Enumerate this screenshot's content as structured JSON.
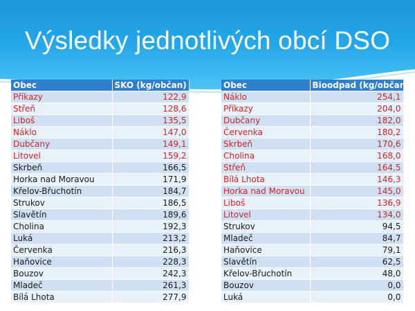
{
  "slide": {
    "title": "Výsledky jednotlivých obcí DSO"
  },
  "colors": {
    "header_blue": "#1a97dc",
    "table_header": "#2f7fcf",
    "row_odd": "#cfe0f3",
    "row_even": "#e8f0fa",
    "highlight_text": "#d42222"
  },
  "left_table": {
    "headers": [
      "Obec",
      "SKO (kg/občan)"
    ],
    "rows": [
      {
        "name": "Příkazy",
        "value": "122,9",
        "highlight": true
      },
      {
        "name": "Střeň",
        "value": "128,6",
        "highlight": true
      },
      {
        "name": "Liboš",
        "value": "135,5",
        "highlight": true
      },
      {
        "name": "Náklo",
        "value": "147,0",
        "highlight": true
      },
      {
        "name": "Dubčany",
        "value": "149,1",
        "highlight": true
      },
      {
        "name": "Litovel",
        "value": "159,2",
        "highlight": true
      },
      {
        "name": "Skrbeň",
        "value": "166,5",
        "highlight": false
      },
      {
        "name": "Horka nad Moravou",
        "value": "171,9",
        "highlight": false
      },
      {
        "name": "Křelov-Břuchotín",
        "value": "184,7",
        "highlight": false
      },
      {
        "name": "Strukov",
        "value": "186,5",
        "highlight": false
      },
      {
        "name": "Slavětín",
        "value": "189,6",
        "highlight": false
      },
      {
        "name": "Cholina",
        "value": "192,3",
        "highlight": false
      },
      {
        "name": "Luká",
        "value": "213,2",
        "highlight": false
      },
      {
        "name": "Červenka",
        "value": "216,3",
        "highlight": false
      },
      {
        "name": "Haňovice",
        "value": "228,3",
        "highlight": false
      },
      {
        "name": "Bouzov",
        "value": "242,3",
        "highlight": false
      },
      {
        "name": "Mladeč",
        "value": "261,3",
        "highlight": false
      },
      {
        "name": "Bílá Lhota",
        "value": "277,9",
        "highlight": false
      }
    ]
  },
  "right_table": {
    "headers": [
      "Obec",
      "Bioodpad (kg/občan)"
    ],
    "rows": [
      {
        "name": "Náklo",
        "value": "254,1",
        "highlight": true
      },
      {
        "name": "Příkazy",
        "value": "204,0",
        "highlight": true
      },
      {
        "name": "Dubčany",
        "value": "182,0",
        "highlight": true
      },
      {
        "name": "Červenka",
        "value": "180,2",
        "highlight": true
      },
      {
        "name": "Skrbeň",
        "value": "170,6",
        "highlight": true
      },
      {
        "name": "Cholina",
        "value": "168,0",
        "highlight": true
      },
      {
        "name": "Střeň",
        "value": "164,5",
        "highlight": true
      },
      {
        "name": "Bílá Lhota",
        "value": "146,3",
        "highlight": true
      },
      {
        "name": "Horka nad Moravou",
        "value": "145,0",
        "highlight": true
      },
      {
        "name": "Liboš",
        "value": "136,9",
        "highlight": true
      },
      {
        "name": "Litovel",
        "value": "134,0",
        "highlight": true
      },
      {
        "name": "Strukov",
        "value": "94,5",
        "highlight": false
      },
      {
        "name": "Mladeč",
        "value": "84,7",
        "highlight": false
      },
      {
        "name": "Haňovice",
        "value": "79,1",
        "highlight": false
      },
      {
        "name": "Slavětín",
        "value": "62,5",
        "highlight": false
      },
      {
        "name": "Křelov-Břuchotín",
        "value": "48,0",
        "highlight": false
      },
      {
        "name": "Bouzov",
        "value": "0,0",
        "highlight": false
      },
      {
        "name": "Luká",
        "value": "0,0",
        "highlight": false
      }
    ]
  }
}
